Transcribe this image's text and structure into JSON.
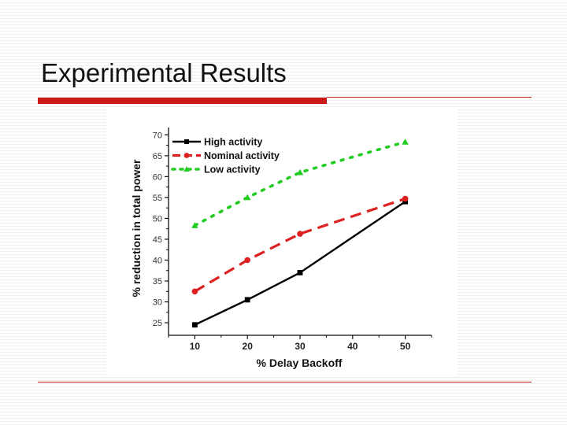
{
  "slide": {
    "title": "Experimental Results"
  },
  "colors": {
    "accent": "#cc1a1a",
    "high": "#000000",
    "nominal": "#dd2020",
    "low": "#22cc22"
  },
  "chart_data": {
    "type": "line",
    "title": "",
    "xlabel": "% Delay Backoff",
    "ylabel": "% reduction in total power",
    "x": [
      10,
      20,
      30,
      40,
      50
    ],
    "x_ticks": [
      10,
      20,
      30,
      40,
      50
    ],
    "x_tick_labels": [
      "10",
      "20",
      "30",
      "40",
      "50"
    ],
    "y_ticks": [
      25,
      30,
      35,
      40,
      45,
      50,
      55,
      60,
      65,
      70
    ],
    "y_tick_labels": [
      "25",
      "30",
      "35",
      "40",
      "45",
      "50",
      "55",
      "60",
      "65",
      "70"
    ],
    "xlim": [
      5,
      55
    ],
    "ylim": [
      22,
      71
    ],
    "legend_position": "top-left",
    "series": [
      {
        "name": "High activity",
        "key": "high",
        "values": [
          24.5,
          30.5,
          37,
          45.5,
          54
        ],
        "marker": "square",
        "dash": "solid",
        "marker_at": [
          10,
          20,
          30,
          50
        ]
      },
      {
        "name": "Nominal activity",
        "key": "nominal",
        "values": [
          32.5,
          40,
          46.3,
          50.5,
          54.7
        ],
        "marker": "circle",
        "dash": "dashed",
        "marker_at": [
          10,
          20,
          30,
          50
        ]
      },
      {
        "name": "Low activity",
        "key": "low",
        "values": [
          48.3,
          55,
          61,
          64.7,
          68.3
        ],
        "marker": "triangle",
        "dash": "dotted",
        "marker_at": [
          10,
          20,
          30,
          50
        ]
      }
    ]
  }
}
